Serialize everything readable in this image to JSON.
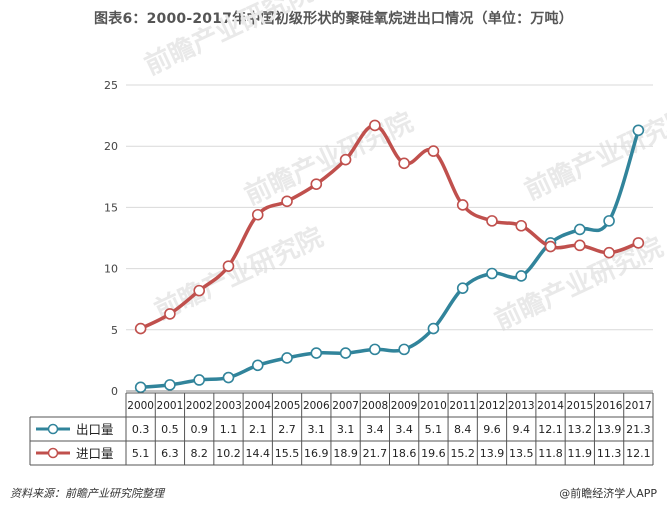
{
  "title": "图表6：2000-2017年中国初级形状的聚硅氧烷进出口情况（单位：万吨）",
  "source": "资料来源：前瞻产业研究院整理",
  "credit": "@前瞻经济学人APP",
  "watermark": "前瞻产业研究院",
  "chart_data": {
    "type": "line",
    "x": [
      "2000",
      "2001",
      "2002",
      "2003",
      "2004",
      "2005",
      "2006",
      "2007",
      "2008",
      "2009",
      "2010",
      "2011",
      "2012",
      "2013",
      "2014",
      "2015",
      "2016",
      "2017"
    ],
    "ylim": [
      0,
      25
    ],
    "yticks": [
      "0",
      "5",
      "10",
      "15",
      "20",
      "25"
    ],
    "grid": true,
    "legend_placement": "bottom-table",
    "series": [
      {
        "name": "出口量",
        "color": "#31849b",
        "values": [
          0.3,
          0.5,
          0.9,
          1.1,
          2.1,
          2.7,
          3.1,
          3.1,
          3.4,
          3.4,
          5.1,
          8.4,
          9.6,
          9.4,
          12.1,
          13.2,
          13.9,
          21.3
        ],
        "labels": [
          "0.3",
          "0.5",
          "0.9",
          "1.1",
          "2.1",
          "2.7",
          "3.1",
          "3.1",
          "3.4",
          "3.4",
          "5.1",
          "8.4",
          "9.6",
          "9.4",
          "12.1",
          "13.2",
          "13.9",
          "21.3"
        ]
      },
      {
        "name": "进口量",
        "color": "#c0504d",
        "values": [
          5.1,
          6.3,
          8.2,
          10.2,
          14.4,
          15.5,
          16.9,
          18.9,
          21.7,
          18.6,
          19.6,
          15.2,
          13.9,
          13.5,
          11.8,
          11.9,
          11.3,
          12.1
        ],
        "labels": [
          "5.1",
          "6.3",
          "8.2",
          "10.2",
          "14.4",
          "15.5",
          "16.9",
          "18.9",
          "21.7",
          "18.6",
          "19.6",
          "15.2",
          "13.9",
          "13.5",
          "11.8",
          "11.9",
          "11.3",
          "12.1"
        ]
      }
    ]
  }
}
